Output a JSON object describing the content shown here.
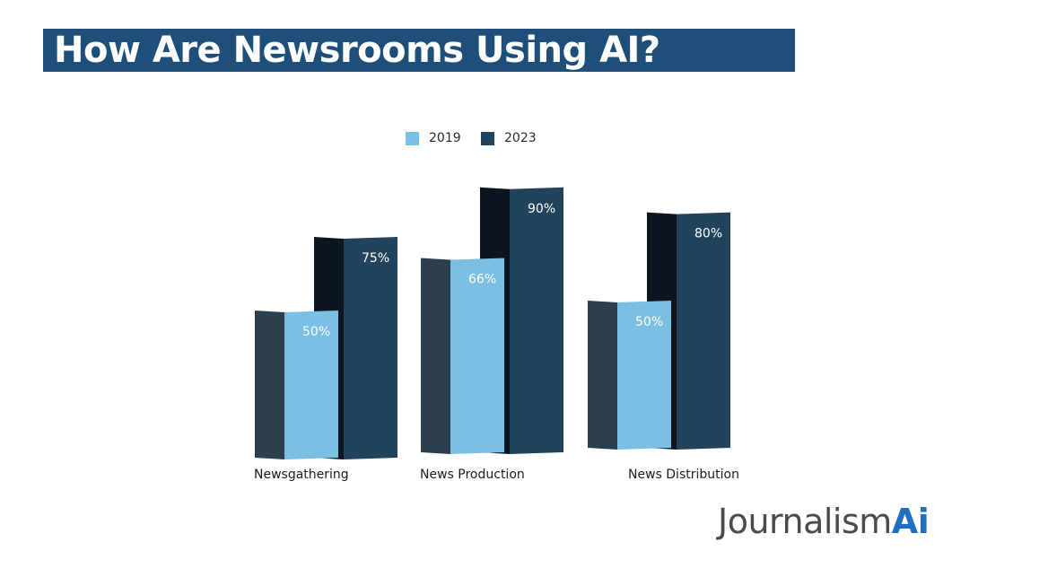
{
  "title": "How Are Newsrooms Using AI?",
  "brand": {
    "main": "Journalism",
    "accent": "Ai"
  },
  "colors": {
    "title_band": "#1d4f7a",
    "series_2019_front": "#7bbfe3",
    "series_2019_side": "#2b3f4e",
    "series_2023_front": "#21445c",
    "series_2023_side": "#0d1620"
  },
  "chart_data": {
    "type": "bar",
    "categories": [
      "Newsgathering",
      "News Production",
      "News Distribution"
    ],
    "series": [
      {
        "name": "2019",
        "values": [
          50,
          66,
          50
        ],
        "labels": [
          "50%",
          "66%",
          "50%"
        ]
      },
      {
        "name": "2023",
        "values": [
          75,
          90,
          80
        ],
        "labels": [
          "75%",
          "90%",
          "80%"
        ]
      }
    ],
    "title": "",
    "xlabel": "",
    "ylabel": "",
    "ylim": [
      0,
      100
    ],
    "grid": false,
    "legend_position": "top"
  }
}
